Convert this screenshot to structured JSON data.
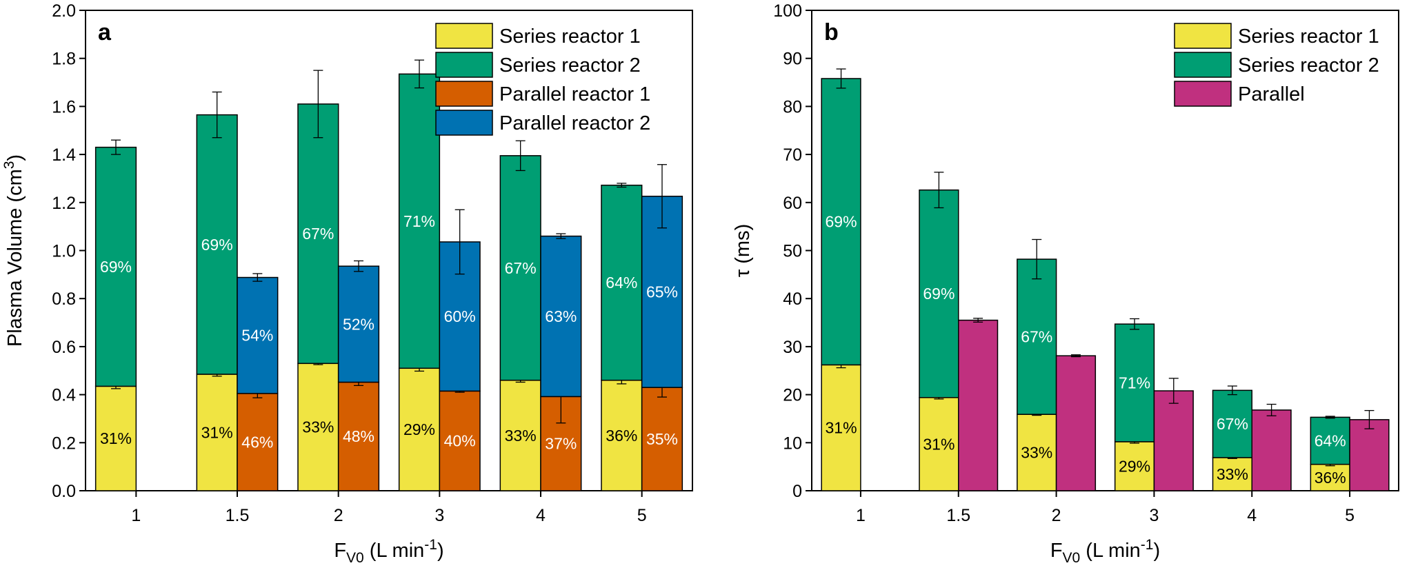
{
  "colors": {
    "series_reactor_1": "#f0e442",
    "series_reactor_2": "#009e73",
    "parallel_reactor_1": "#d55e00",
    "parallel_reactor_2": "#0072b2",
    "parallel": "#c0307f"
  },
  "chart_data": [
    {
      "panel_label": "a",
      "type": "bar",
      "stacked": true,
      "xlabel": "F_V0 (L min^-1)",
      "xlabel_parts": {
        "main": "F",
        "sub": "V0",
        "mid": " (L min",
        "sup": "-1",
        "end": ")"
      },
      "ylabel": "Plasma Volume (cm³)",
      "ylabel_parts": {
        "main": "Plasma Volume (cm",
        "sup": "3",
        "end": ")"
      },
      "ylim": [
        0,
        2.0
      ],
      "yticks": [
        "0.0",
        "0.2",
        "0.4",
        "0.6",
        "0.8",
        "1.0",
        "1.2",
        "1.4",
        "1.6",
        "1.8",
        "2.0"
      ],
      "categories": [
        "1",
        "1.5",
        "2",
        "3",
        "4",
        "5"
      ],
      "legend_position": "top-right",
      "legend": [
        "Series reactor 1",
        "Series reactor 2",
        "Parallel reactor 1",
        "Parallel reactor 2"
      ],
      "groups": [
        {
          "name": "Series",
          "series": [
            {
              "name": "Series reactor 1",
              "values": [
                0.435,
                0.485,
                0.53,
                0.51,
                0.46,
                0.46
              ],
              "err": [
                0.01,
                0.008,
                0.005,
                0.012,
                0.008,
                0.015
              ],
              "labels": [
                "31%",
                "31%",
                "33%",
                "29%",
                "33%",
                "36%"
              ],
              "label_color": "#000000"
            },
            {
              "name": "Series reactor 2",
              "values": [
                0.995,
                1.08,
                1.08,
                1.225,
                0.935,
                0.812
              ],
              "err": [
                0.03,
                0.095,
                0.14,
                0.058,
                0.062,
                0.008
              ],
              "labels": [
                "69%",
                "69%",
                "67%",
                "71%",
                "67%",
                "64%"
              ],
              "label_color": "#ffffff"
            }
          ]
        },
        {
          "name": "Parallel",
          "series": [
            {
              "name": "Parallel reactor 1",
              "values": [
                null,
                0.405,
                0.452,
                0.415,
                0.392,
                0.43
              ],
              "err": [
                null,
                0.018,
                0.014,
                0.005,
                0.11,
                0.04
              ],
              "labels": [
                "",
                "46%",
                "48%",
                "40%",
                "37%",
                "35%"
              ],
              "label_color": "#ffffff"
            },
            {
              "name": "Parallel reactor 2",
              "values": [
                null,
                0.483,
                0.483,
                0.621,
                0.668,
                0.796
              ],
              "err": [
                null,
                0.016,
                0.022,
                0.134,
                0.01,
                0.132
              ],
              "labels": [
                "",
                "54%",
                "52%",
                "60%",
                "63%",
                "65%"
              ],
              "label_color": "#ffffff"
            }
          ]
        }
      ]
    },
    {
      "panel_label": "b",
      "type": "bar",
      "stacked": true,
      "xlabel": "F_V0 (L min^-1)",
      "xlabel_parts": {
        "main": "F",
        "sub": "V0",
        "mid": " (L min",
        "sup": "-1",
        "end": ")"
      },
      "ylabel": "τ (ms)",
      "ylabel_parts": {
        "main": "τ (ms)",
        "sup": "",
        "end": ""
      },
      "ylim": [
        0,
        100
      ],
      "yticks": [
        "0",
        "10",
        "20",
        "30",
        "40",
        "50",
        "60",
        "70",
        "80",
        "90",
        "100"
      ],
      "categories": [
        "1",
        "1.5",
        "2",
        "3",
        "4",
        "5"
      ],
      "legend_position": "top-right",
      "legend": [
        "Series reactor 1",
        "Series reactor 2",
        "Parallel"
      ],
      "groups": [
        {
          "name": "Series",
          "series": [
            {
              "name": "Series reactor 1",
              "values": [
                26.2,
                19.4,
                15.9,
                10.2,
                6.9,
                5.5
              ],
              "err": [
                0.6,
                0.3,
                0.2,
                0.3,
                0.2,
                0.3
              ],
              "labels": [
                "31%",
                "31%",
                "33%",
                "29%",
                "33%",
                "36%"
              ],
              "label_color": "#000000"
            },
            {
              "name": "Series reactor 2",
              "values": [
                59.6,
                43.2,
                32.3,
                24.5,
                14.0,
                9.8
              ],
              "err": [
                2.0,
                3.7,
                4.1,
                1.1,
                0.9,
                0.2
              ],
              "labels": [
                "69%",
                "69%",
                "67%",
                "71%",
                "67%",
                "64%"
              ],
              "label_color": "#ffffff"
            }
          ]
        },
        {
          "name": "Parallel",
          "series": [
            {
              "name": "Parallel",
              "values": [
                null,
                35.5,
                28.1,
                20.8,
                16.8,
                14.8
              ],
              "err": [
                null,
                0.4,
                0.2,
                2.6,
                1.2,
                1.9
              ],
              "labels": [
                "",
                "",
                "",
                "",
                "",
                ""
              ],
              "label_color": "#ffffff"
            }
          ]
        }
      ]
    }
  ]
}
